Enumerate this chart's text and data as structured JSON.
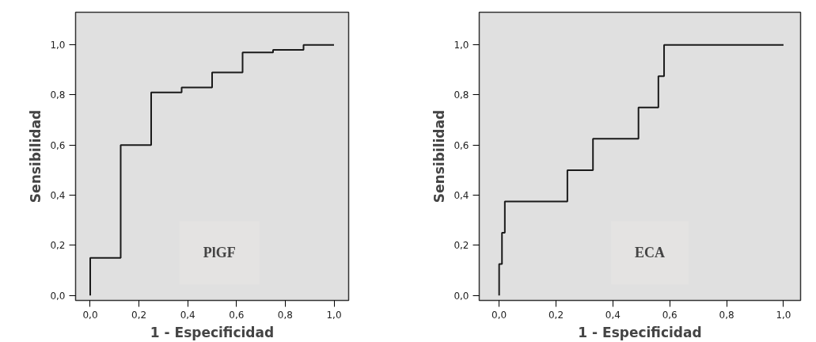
{
  "chart_data": [
    {
      "type": "step",
      "xlabel": "1 - Especificidad",
      "ylabel": "Sensibilidad",
      "annotations": [
        "PlGF"
      ],
      "x": [
        0,
        0,
        0.125,
        0.25,
        0.375,
        0.5,
        0.625,
        0.75,
        0.875,
        1.0
      ],
      "series": [
        {
          "color": "#1a1a1a",
          "values": [
            0,
            0.15,
            0.6,
            0.81,
            0.83,
            0.89,
            0.97,
            0.98,
            1.0,
            1.0
          ]
        }
      ],
      "xlim": [
        -0.06,
        1.06
      ],
      "ylim": [
        -0.02,
        1.13
      ],
      "xticks": [
        {
          "value": 0,
          "label": "0,0"
        },
        {
          "value": 0.2,
          "label": "0,2"
        },
        {
          "value": 0.4,
          "label": "0,4"
        },
        {
          "value": 0.6,
          "label": "0,6"
        },
        {
          "value": 0.8,
          "label": "0,8"
        },
        {
          "value": 1.0,
          "label": "1,0"
        }
      ],
      "yticks": [
        {
          "value": 0,
          "label": "0,0"
        },
        {
          "value": 0.2,
          "label": "0,2"
        },
        {
          "value": 0.4,
          "label": "0,4"
        },
        {
          "value": 0.6,
          "label": "0,6"
        },
        {
          "value": 0.8,
          "label": "0,8"
        },
        {
          "value": 1.0,
          "label": "1,0"
        }
      ],
      "grid": false
    },
    {
      "type": "step",
      "xlabel": "1 - Especificidad",
      "ylabel": "Sensibilidad",
      "annotations": [
        "ECA"
      ],
      "x": [
        0,
        0,
        0.01,
        0.02,
        0.24,
        0.33,
        0.49,
        0.56,
        0.58,
        1.0
      ],
      "series": [
        {
          "color": "#1a1a1a",
          "values": [
            0,
            0.125,
            0.25,
            0.375,
            0.5,
            0.625,
            0.75,
            0.875,
            1.0,
            1.0
          ]
        }
      ],
      "xlim": [
        -0.07,
        1.06
      ],
      "ylim": [
        -0.02,
        1.13
      ],
      "xticks": [
        {
          "value": 0,
          "label": "0,0"
        },
        {
          "value": 0.2,
          "label": "0,2"
        },
        {
          "value": 0.4,
          "label": "0,4"
        },
        {
          "value": 0.6,
          "label": "0,6"
        },
        {
          "value": 0.8,
          "label": "0,8"
        },
        {
          "value": 1.0,
          "label": "1,0"
        }
      ],
      "yticks": [
        {
          "value": 0,
          "label": "0,0"
        },
        {
          "value": 0.2,
          "label": "0,2"
        },
        {
          "value": 0.4,
          "label": "0,4"
        },
        {
          "value": 0.6,
          "label": "0,6"
        },
        {
          "value": 0.8,
          "label": "0,8"
        },
        {
          "value": 1.0,
          "label": "1,0"
        }
      ],
      "grid": false
    }
  ]
}
